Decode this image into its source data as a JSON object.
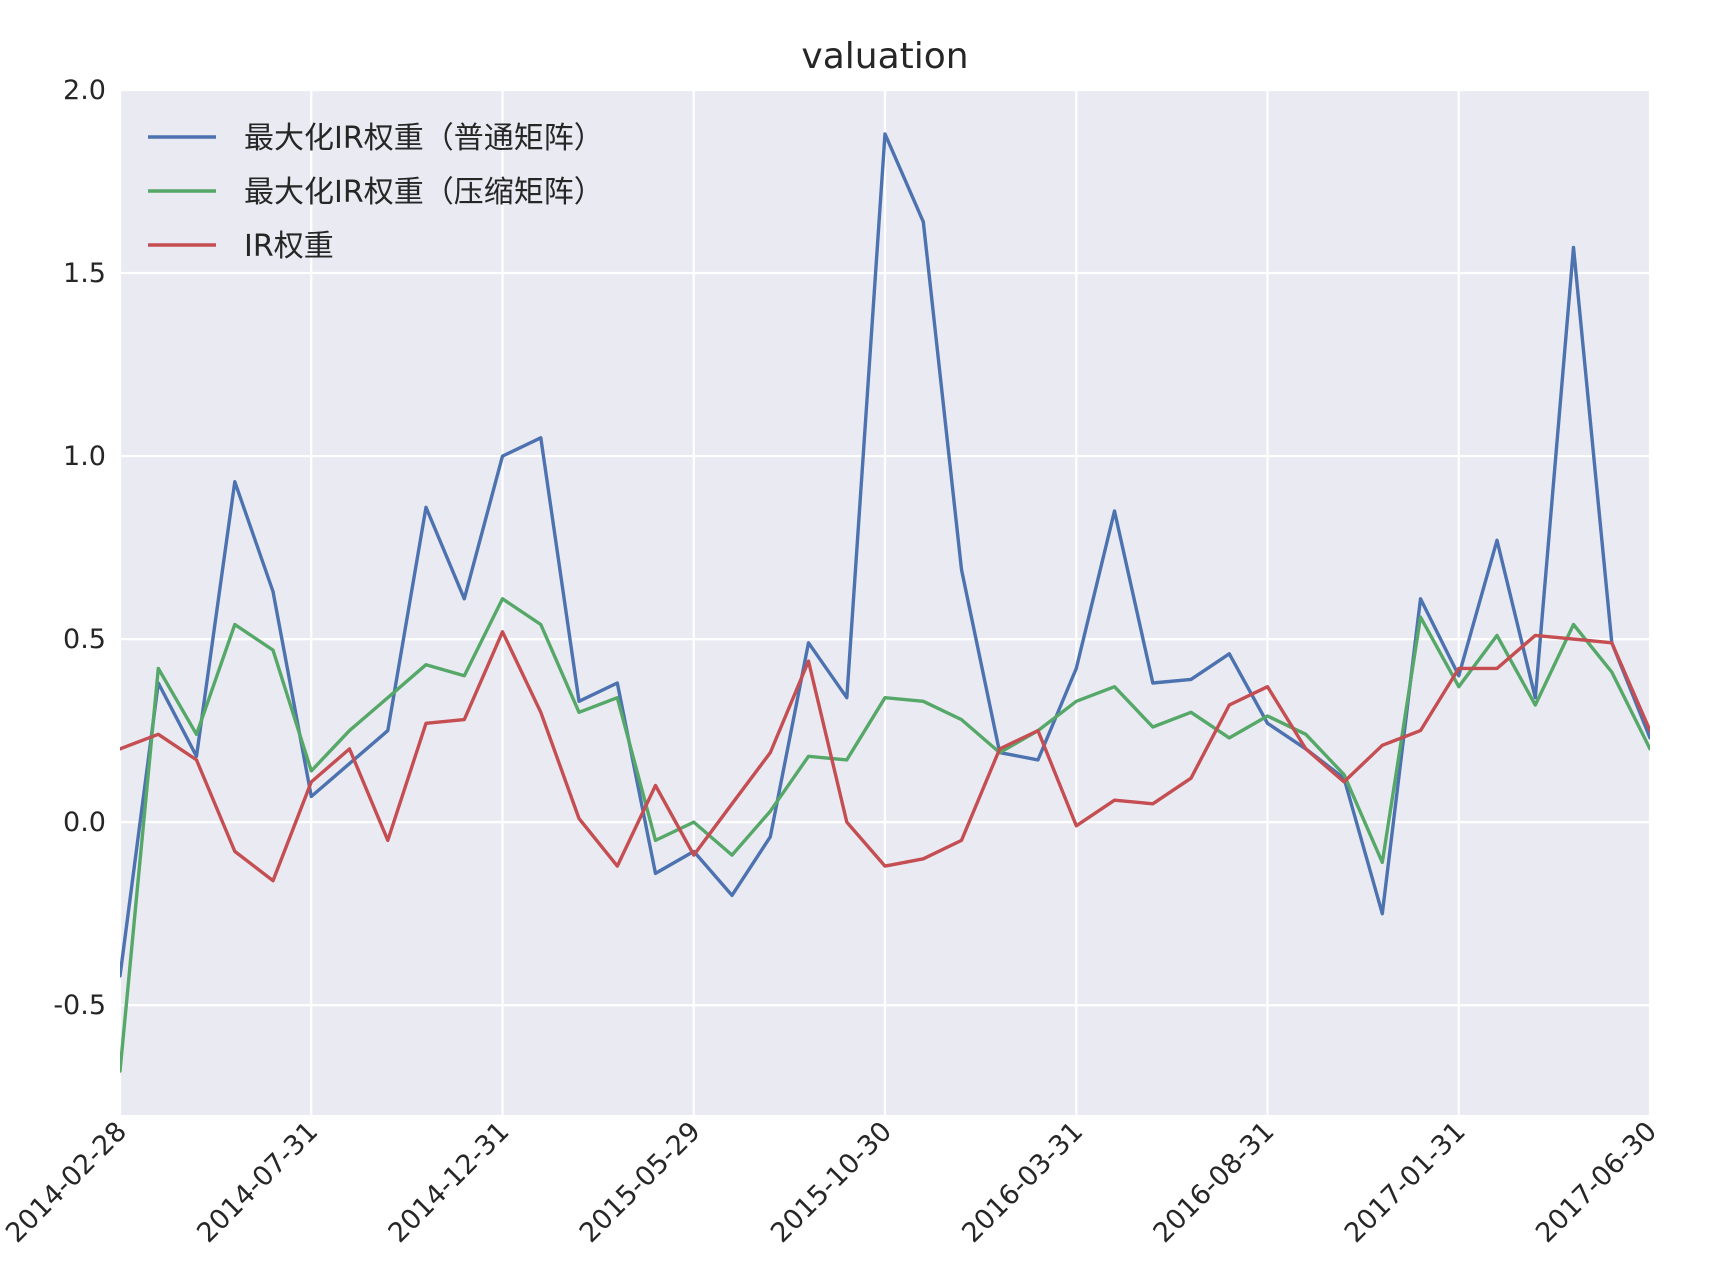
{
  "chart_data": {
    "type": "line",
    "title": "valuation",
    "xlabel": "",
    "ylabel": "",
    "grid": true,
    "legend_position": "top-left",
    "ylim": [
      -0.8,
      2.0
    ],
    "yticks": [
      -0.5,
      0.0,
      0.5,
      1.0,
      1.5,
      2.0
    ],
    "ytick_labels": [
      "-0.5",
      "0.0",
      "0.5",
      "1.0",
      "1.5",
      "2.0"
    ],
    "x": [
      "2014-02-28",
      "2014-03-31",
      "2014-04-30",
      "2014-05-30",
      "2014-06-30",
      "2014-07-31",
      "2014-08-29",
      "2014-09-30",
      "2014-10-31",
      "2014-11-28",
      "2014-12-31",
      "2015-01-30",
      "2015-02-27",
      "2015-03-31",
      "2015-04-30",
      "2015-05-29",
      "2015-06-30",
      "2015-07-31",
      "2015-08-31",
      "2015-09-30",
      "2015-10-30",
      "2015-11-30",
      "2015-12-31",
      "2016-01-29",
      "2016-02-29",
      "2016-03-31",
      "2016-04-29",
      "2016-05-31",
      "2016-06-30",
      "2016-07-29",
      "2016-08-31",
      "2016-09-30",
      "2016-10-31",
      "2016-11-30",
      "2016-12-30",
      "2017-01-31",
      "2017-02-28",
      "2017-03-31",
      "2017-04-28",
      "2017-05-31",
      "2017-06-30"
    ],
    "xticks": [
      "2014-02-28",
      "2014-07-31",
      "2014-12-31",
      "2015-05-29",
      "2015-10-30",
      "2016-03-31",
      "2016-08-31",
      "2017-01-31",
      "2017-06-30"
    ],
    "series": [
      {
        "name": "最大化IR权重（普通矩阵）",
        "color": "#4c72b0",
        "values": [
          -0.42,
          0.38,
          0.18,
          0.93,
          0.63,
          0.07,
          0.16,
          0.25,
          0.86,
          0.61,
          1.0,
          1.05,
          0.33,
          0.38,
          -0.14,
          -0.08,
          -0.2,
          -0.04,
          0.49,
          0.34,
          1.88,
          1.64,
          0.69,
          0.19,
          0.17,
          0.42,
          0.85,
          0.38,
          0.39,
          0.46,
          0.27,
          0.2,
          0.12,
          -0.25,
          0.61,
          0.4,
          0.77,
          0.34,
          1.57,
          0.49,
          0.23
        ]
      },
      {
        "name": "最大化IR权重（压缩矩阵）",
        "color": "#55a868",
        "values": [
          -0.68,
          0.42,
          0.24,
          0.54,
          0.47,
          0.14,
          0.25,
          0.34,
          0.43,
          0.4,
          0.61,
          0.54,
          0.3,
          0.34,
          -0.05,
          0.0,
          -0.09,
          0.03,
          0.18,
          0.17,
          0.34,
          0.33,
          0.28,
          0.19,
          0.25,
          0.33,
          0.37,
          0.26,
          0.3,
          0.23,
          0.29,
          0.24,
          0.13,
          -0.11,
          0.56,
          0.37,
          0.51,
          0.32,
          0.54,
          0.41,
          0.2
        ]
      },
      {
        "name": "IR权重",
        "color": "#c44e52",
        "values": [
          0.2,
          0.24,
          0.17,
          -0.08,
          -0.16,
          0.11,
          0.2,
          -0.05,
          0.27,
          0.28,
          0.52,
          0.3,
          0.01,
          -0.12,
          0.1,
          -0.09,
          0.05,
          0.19,
          0.44,
          0.0,
          -0.12,
          -0.1,
          -0.05,
          0.2,
          0.25,
          -0.01,
          0.06,
          0.05,
          0.12,
          0.32,
          0.37,
          0.2,
          0.11,
          0.21,
          0.25,
          0.42,
          0.42,
          0.51,
          0.5,
          0.49,
          0.25
        ]
      }
    ]
  }
}
